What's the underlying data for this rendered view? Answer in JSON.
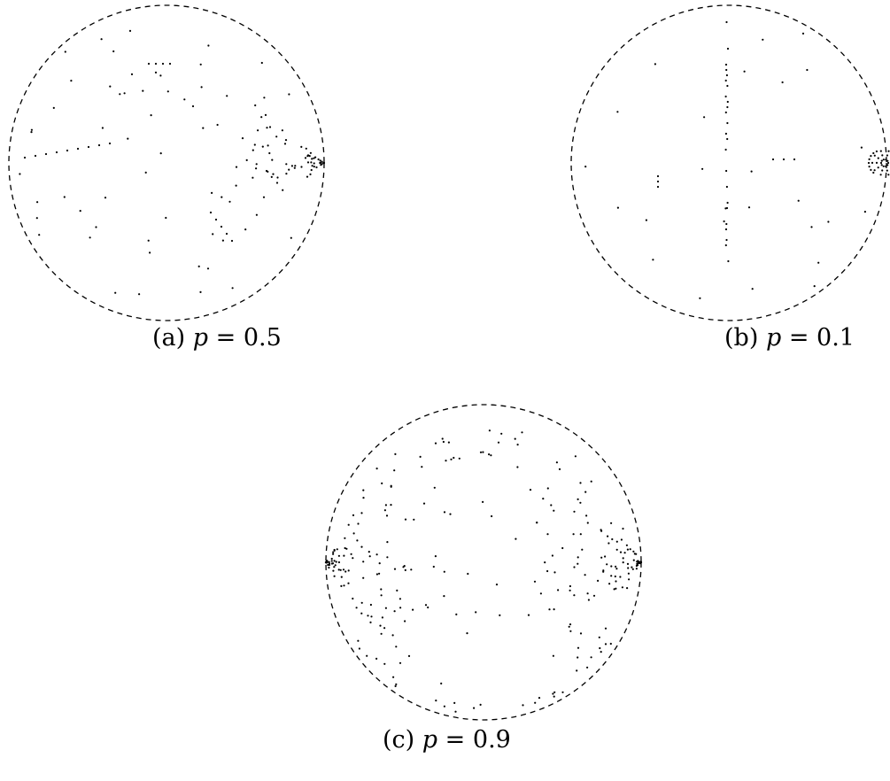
{
  "figures": [
    {
      "id": "a",
      "label": "(a)",
      "var": "p",
      "eq": " = ",
      "value": "0.5"
    },
    {
      "id": "b",
      "label": "(b)",
      "var": "p",
      "eq": " = ",
      "value": "0.1"
    },
    {
      "id": "c",
      "label": "(c)",
      "var": "p",
      "eq": " = ",
      "value": "0.9"
    }
  ],
  "style": {
    "circle_color": "#000000",
    "point_color": "#000000",
    "circle_dash": "dashed"
  }
}
